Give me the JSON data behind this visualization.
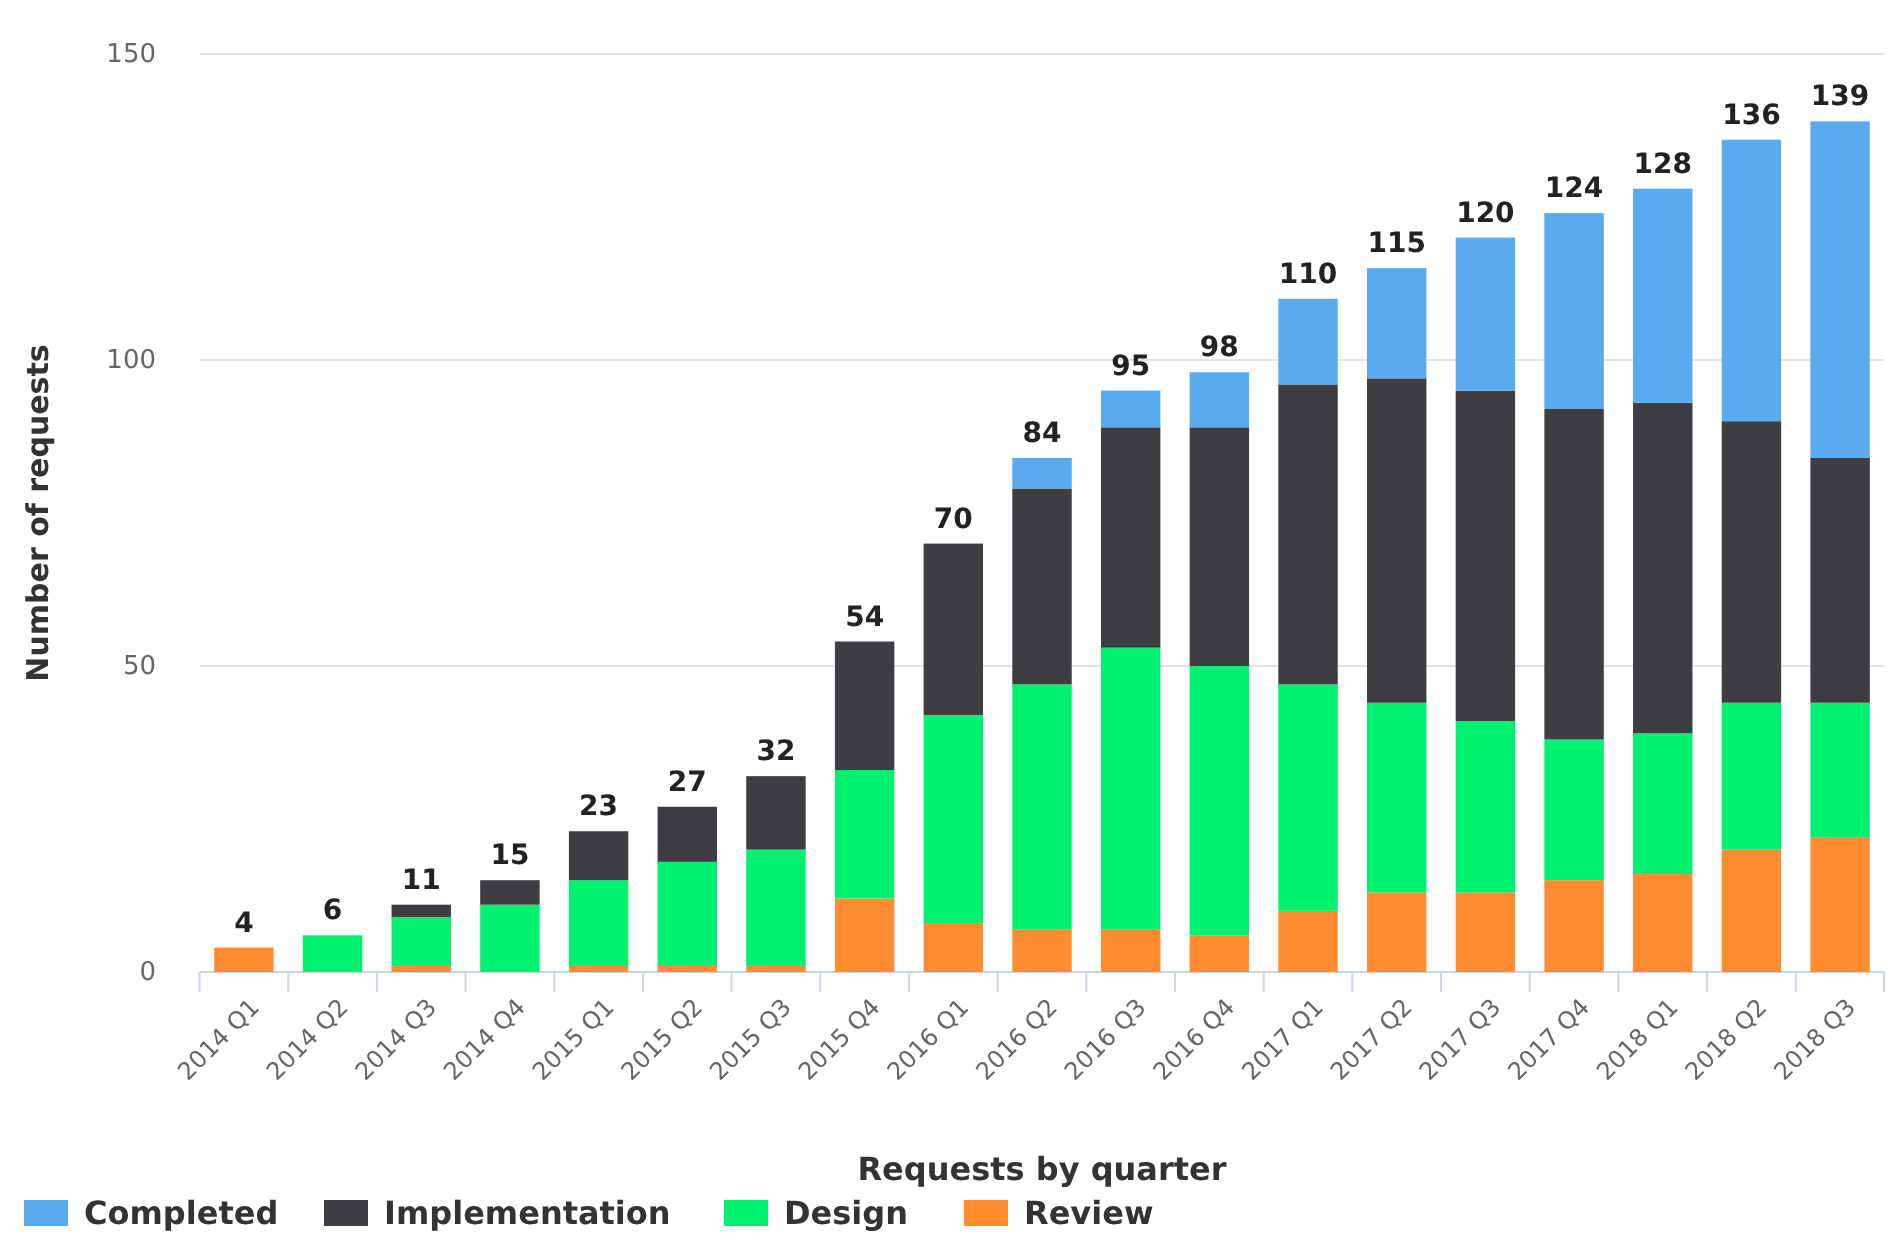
{
  "chart_data": {
    "type": "bar",
    "stacked": true,
    "xlabel": "Requests by quarter",
    "ylabel": "Number of requests",
    "categories": [
      "2014 Q1",
      "2014 Q2",
      "2014 Q3",
      "2014 Q4",
      "2015 Q1",
      "2015 Q2",
      "2015 Q3",
      "2015 Q4",
      "2016 Q1",
      "2016 Q2",
      "2016 Q3",
      "2016 Q4",
      "2017 Q1",
      "2017 Q2",
      "2017 Q3",
      "2017 Q4",
      "2018 Q1",
      "2018 Q2",
      "2018 Q3"
    ],
    "series": [
      {
        "name": "Review",
        "color": "#ff8c30",
        "values": [
          4,
          0,
          1,
          0,
          1,
          1,
          1,
          12,
          8,
          7,
          7,
          6,
          10,
          13,
          13,
          15,
          16,
          20,
          22
        ]
      },
      {
        "name": "Design",
        "color": "#00f070",
        "values": [
          0,
          6,
          8,
          11,
          14,
          17,
          19,
          21,
          34,
          40,
          46,
          44,
          37,
          31,
          28,
          23,
          23,
          24,
          22
        ]
      },
      {
        "name": "Implementation",
        "color": "#3d3d42",
        "values": [
          0,
          0,
          2,
          4,
          8,
          9,
          12,
          21,
          28,
          32,
          36,
          39,
          49,
          53,
          54,
          54,
          54,
          46,
          40
        ]
      },
      {
        "name": "Completed",
        "color": "#5aaaee",
        "values": [
          0,
          0,
          0,
          0,
          0,
          0,
          0,
          0,
          0,
          5,
          6,
          9,
          14,
          18,
          25,
          32,
          35,
          46,
          55
        ]
      }
    ],
    "totals": [
      "4",
      "6",
      "11",
      "15",
      "23",
      "27",
      "32",
      "54",
      "70",
      "84",
      "95",
      "98",
      "110",
      "115",
      "120",
      "124",
      "128",
      "136",
      "139"
    ],
    "ylim": [
      0,
      150
    ],
    "yticks": [
      0,
      50,
      100,
      150
    ],
    "grid": "y",
    "legend": "bottom left"
  }
}
